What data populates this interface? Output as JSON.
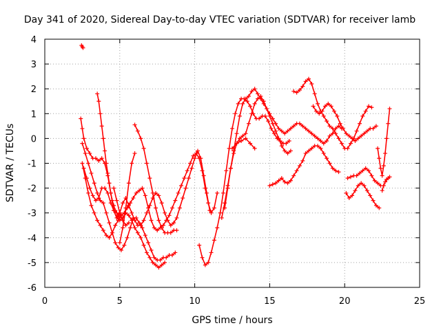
{
  "chart_data": {
    "type": "scatter",
    "title": "Day 341 of 2020, Sidereal Day-to-day VTEC variation (SDTVAR) for receiver lamb",
    "xlabel": "GPS time / hours",
    "ylabel": "SDTVAR / TECUs",
    "xlim": [
      0,
      25
    ],
    "ylim": [
      -6,
      4
    ],
    "xticks": [
      "0",
      "5",
      "10",
      "15",
      "20",
      "25"
    ],
    "yticks": [
      "-6",
      "-5",
      "-4",
      "-3",
      "-2",
      "-1",
      "0",
      "1",
      "2",
      "3",
      "4"
    ],
    "grid": true,
    "marker": "plus",
    "color": "#ff0000",
    "series": [
      {
        "x": [
          2.45,
          2.5,
          2.55
        ],
        "y": [
          3.75,
          3.7,
          3.65
        ]
      },
      {
        "x": [
          2.4,
          2.5,
          2.6,
          2.8,
          3.0,
          3.2,
          3.4,
          3.6,
          3.8,
          4.0,
          4.2,
          4.4,
          4.6,
          4.8,
          5.0,
          5.2,
          5.4,
          5.6,
          5.8,
          6.0,
          6.2,
          6.4,
          6.6,
          6.8,
          7.0,
          7.2,
          7.4,
          7.6,
          7.8,
          8.0
        ],
        "y": [
          0.8,
          0.4,
          0.0,
          -0.4,
          -0.6,
          -0.8,
          -0.8,
          -0.9,
          -0.8,
          -1.0,
          -1.5,
          -2.2,
          -2.9,
          -3.2,
          -3.3,
          -3.2,
          -3.0,
          -3.1,
          -3.3,
          -3.6,
          -3.8,
          -4.0,
          -4.3,
          -4.6,
          -4.8,
          -5.0,
          -5.1,
          -5.2,
          -5.1,
          -5.0
        ]
      },
      {
        "x": [
          2.5,
          2.7,
          2.9,
          3.1,
          3.3,
          3.5,
          3.7,
          3.9,
          4.1,
          4.3,
          4.5,
          4.7,
          4.9,
          5.1,
          5.3,
          5.5,
          5.7,
          5.9,
          6.1,
          6.3,
          6.5,
          6.7,
          6.9,
          7.1,
          7.3,
          7.5,
          7.7,
          7.9,
          8.1,
          8.3,
          8.5,
          8.7
        ],
        "y": [
          -0.2,
          -0.6,
          -1.0,
          -1.4,
          -1.8,
          -2.2,
          -2.5,
          -2.6,
          -3.0,
          -3.4,
          -3.8,
          -4.2,
          -4.4,
          -4.5,
          -4.3,
          -4.0,
          -3.6,
          -3.2,
          -3.2,
          -3.4,
          -3.6,
          -3.9,
          -4.2,
          -4.5,
          -4.8,
          -4.9,
          -4.9,
          -4.8,
          -4.8,
          -4.7,
          -4.7,
          -4.6
        ]
      },
      {
        "x": [
          2.6,
          2.8,
          3.0,
          3.2,
          3.4,
          3.6,
          3.8,
          4.0,
          4.2,
          4.4,
          4.6,
          4.8,
          5.0,
          5.2,
          5.4,
          5.6,
          5.8,
          6.0,
          6.2,
          6.4,
          6.6,
          6.8,
          7.0,
          7.2,
          7.4,
          7.6,
          7.8,
          8.0,
          8.2,
          8.4,
          8.6,
          8.8,
          9.0,
          9.2,
          9.4,
          9.6,
          9.8,
          10.0,
          10.2,
          10.4,
          10.6,
          10.8,
          11.0
        ],
        "y": [
          -1.2,
          -1.6,
          -2.0,
          -2.3,
          -2.5,
          -2.4,
          -2.0,
          -2.0,
          -2.2,
          -2.6,
          -2.9,
          -3.2,
          -3.0,
          -2.6,
          -2.4,
          -2.7,
          -3.0,
          -3.3,
          -3.5,
          -3.5,
          -3.3,
          -3.0,
          -2.7,
          -2.4,
          -2.2,
          -2.3,
          -2.6,
          -3.0,
          -3.3,
          -3.5,
          -3.4,
          -3.2,
          -2.8,
          -2.4,
          -2.0,
          -1.6,
          -1.2,
          -0.8,
          -0.5,
          -0.8,
          -1.5,
          -2.2,
          -2.9
        ]
      },
      {
        "x": [
          2.5,
          2.7,
          2.9,
          3.1,
          3.3,
          3.5,
          3.7,
          3.9,
          4.1,
          4.3,
          4.5,
          4.7,
          4.9,
          5.1,
          5.3,
          5.5,
          5.7,
          5.9,
          6.1,
          6.3,
          6.5,
          6.7,
          6.9,
          7.1,
          7.3,
          7.5,
          7.7,
          7.9,
          8.1,
          8.3,
          8.5,
          8.7,
          8.9,
          9.1,
          9.3,
          9.5,
          9.7,
          9.9,
          10.1,
          10.3,
          10.5,
          10.7,
          10.9,
          11.1,
          11.3,
          11.5
        ],
        "y": [
          -1.0,
          -1.6,
          -2.2,
          -2.7,
          -3.0,
          -3.3,
          -3.5,
          -3.7,
          -3.9,
          -4.0,
          -3.8,
          -3.5,
          -3.3,
          -3.1,
          -3.0,
          -2.8,
          -2.6,
          -2.4,
          -2.2,
          -2.1,
          -2.0,
          -2.3,
          -2.8,
          -3.3,
          -3.6,
          -3.7,
          -3.6,
          -3.5,
          -3.3,
          -3.1,
          -2.8,
          -2.5,
          -2.2,
          -1.9,
          -1.6,
          -1.3,
          -1.0,
          -0.7,
          -0.6,
          -0.8,
          -1.3,
          -2.0,
          -2.6,
          -3.0,
          -2.8,
          -2.2
        ]
      },
      {
        "x": [
          3.5,
          3.6,
          3.7,
          3.8,
          3.9,
          4.0,
          4.1,
          4.2,
          4.3,
          4.4,
          4.5,
          4.6,
          4.7,
          4.8,
          4.9,
          5.0
        ],
        "y": [
          1.8,
          1.5,
          1.0,
          0.5,
          0.0,
          -0.5,
          -1.0,
          -1.4,
          -1.8,
          -2.2,
          -2.5,
          -2.7,
          -2.9,
          -3.0,
          -3.1,
          -3.2
        ]
      },
      {
        "x": [
          4.6,
          4.8,
          5.0,
          5.2,
          5.4,
          5.6
        ],
        "y": [
          -2.0,
          -2.5,
          -3.0,
          -3.3,
          -3.5,
          -3.4
        ]
      },
      {
        "x": [
          5.0,
          5.2,
          5.4,
          5.6,
          5.8,
          6.0
        ],
        "y": [
          -4.2,
          -3.6,
          -2.8,
          -1.8,
          -1.0,
          -0.6
        ]
      },
      {
        "x": [
          6.0,
          6.2,
          6.4,
          6.6,
          6.8,
          7.0,
          7.2,
          7.4,
          7.6,
          7.8,
          8.0,
          8.2,
          8.4,
          8.6,
          8.8
        ],
        "y": [
          0.55,
          0.3,
          0.0,
          -0.4,
          -1.0,
          -1.6,
          -2.2,
          -2.8,
          -3.3,
          -3.6,
          -3.8,
          -3.8,
          -3.8,
          -3.7,
          -3.7
        ]
      },
      {
        "x": [
          10.3,
          10.5,
          10.7,
          10.9,
          11.1,
          11.3,
          11.5,
          11.7,
          11.9,
          12.1,
          12.3,
          12.5,
          12.7,
          12.9,
          13.1,
          13.3,
          13.5,
          13.7,
          13.9,
          14.1,
          14.3,
          14.5,
          14.7,
          14.9,
          15.1,
          15.3,
          15.5,
          15.7,
          15.9,
          16.1,
          16.3
        ],
        "y": [
          -4.3,
          -4.8,
          -5.1,
          -5.0,
          -4.6,
          -4.1,
          -3.6,
          -3.0,
          -2.2,
          -1.3,
          -0.4,
          0.4,
          1.0,
          1.4,
          1.6,
          1.6,
          1.5,
          1.3,
          1.0,
          0.8,
          0.8,
          0.9,
          0.9,
          0.7,
          0.4,
          0.2,
          0.0,
          -0.1,
          -0.2,
          -0.2,
          -0.1
        ]
      },
      {
        "x": [
          11.8,
          12.0,
          12.2,
          12.4,
          12.6,
          12.8,
          13.0,
          13.2,
          13.4,
          13.6,
          13.8,
          14.0,
          14.2,
          14.4,
          14.6,
          14.8,
          15.0,
          15.2,
          15.4,
          15.6,
          15.8,
          16.0,
          16.2,
          16.4,
          16.6,
          16.8,
          17.0,
          17.2,
          17.4,
          17.6,
          17.8,
          18.0,
          18.2,
          18.4,
          18.6,
          18.8,
          19.0,
          19.2,
          19.4,
          19.6,
          19.8
        ],
        "y": [
          -3.2,
          -2.6,
          -1.9,
          -1.2,
          -0.5,
          0.2,
          0.9,
          1.4,
          1.6,
          1.7,
          1.9,
          2.0,
          1.8,
          1.6,
          1.4,
          1.2,
          1.0,
          0.8,
          0.6,
          0.4,
          0.3,
          0.2,
          0.3,
          0.4,
          0.5,
          0.6,
          0.6,
          0.5,
          0.4,
          0.3,
          0.2,
          0.1,
          0.0,
          -0.1,
          -0.2,
          -0.1,
          0.1,
          0.2,
          0.4,
          0.5,
          0.4
        ]
      },
      {
        "x": [
          12.0,
          12.2,
          12.4,
          12.6,
          12.8,
          13.0,
          13.2,
          13.4,
          13.6,
          13.8,
          14.0,
          14.2,
          14.4,
          14.6,
          14.8,
          15.0,
          15.2,
          15.4,
          15.6,
          15.8,
          16.0,
          16.2,
          16.4
        ],
        "y": [
          -2.8,
          -2.0,
          -1.2,
          -0.6,
          -0.2,
          0.0,
          0.1,
          0.2,
          0.6,
          1.0,
          1.4,
          1.6,
          1.7,
          1.5,
          1.2,
          0.9,
          0.6,
          0.3,
          0.0,
          -0.3,
          -0.5,
          -0.6,
          -0.5
        ]
      },
      {
        "x": [
          12.5,
          12.8,
          13.1,
          13.4,
          13.7,
          14.0
        ],
        "y": [
          -0.4,
          -0.2,
          -0.1,
          0.0,
          -0.2,
          -0.4
        ]
      },
      {
        "x": [
          15.0,
          15.2,
          15.4,
          15.6,
          15.8,
          16.0,
          16.2,
          16.4,
          16.6,
          16.8,
          17.0,
          17.2,
          17.4,
          17.6,
          17.8,
          18.0,
          18.2,
          18.4,
          18.6,
          18.8,
          19.0,
          19.2,
          19.4,
          19.6
        ],
        "y": [
          -1.9,
          -1.85,
          -1.8,
          -1.7,
          -1.6,
          -1.75,
          -1.8,
          -1.7,
          -1.5,
          -1.3,
          -1.1,
          -0.9,
          -0.6,
          -0.5,
          -0.4,
          -0.3,
          -0.3,
          -0.4,
          -0.6,
          -0.8,
          -1.0,
          -1.2,
          -1.3,
          -1.35
        ]
      },
      {
        "x": [
          16.6,
          16.8,
          17.0,
          17.2,
          17.4,
          17.6,
          17.8,
          18.0,
          18.2,
          18.4,
          18.6,
          18.8,
          19.0,
          19.2,
          19.4,
          19.6,
          19.8,
          20.0,
          20.2,
          20.4,
          20.6,
          20.8,
          21.0,
          21.2,
          21.4,
          21.6,
          21.8
        ],
        "y": [
          1.9,
          1.85,
          1.95,
          2.1,
          2.3,
          2.4,
          2.2,
          1.8,
          1.4,
          1.1,
          0.9,
          0.7,
          0.5,
          0.4,
          0.2,
          0.0,
          -0.2,
          -0.4,
          -0.4,
          -0.2,
          0.0,
          0.3,
          0.6,
          0.9,
          1.1,
          1.3,
          1.25
        ]
      },
      {
        "x": [
          17.9,
          18.1,
          18.3,
          18.5,
          18.7,
          18.9,
          19.1,
          19.3,
          19.5,
          19.7,
          19.9,
          20.1,
          20.3,
          20.5,
          20.7,
          20.9,
          21.1,
          21.3,
          21.5,
          21.7,
          21.9,
          22.1
        ],
        "y": [
          1.3,
          1.1,
          1.0,
          1.1,
          1.3,
          1.4,
          1.3,
          1.1,
          0.9,
          0.6,
          0.4,
          0.2,
          0.1,
          0.0,
          -0.1,
          0.0,
          0.1,
          0.2,
          0.3,
          0.4,
          0.4,
          0.5
        ]
      },
      {
        "x": [
          20.1,
          20.3,
          20.5,
          20.7,
          20.9,
          21.1,
          21.3,
          21.5,
          21.7,
          21.9,
          22.1,
          22.3
        ],
        "y": [
          -2.2,
          -2.4,
          -2.3,
          -2.1,
          -1.9,
          -1.8,
          -1.9,
          -2.1,
          -2.3,
          -2.5,
          -2.7,
          -2.8
        ]
      },
      {
        "x": [
          20.2,
          20.4,
          20.6,
          20.8,
          21.0,
          21.2,
          21.4,
          21.6,
          21.8,
          22.0,
          22.2,
          22.4
        ],
        "y": [
          -1.6,
          -1.55,
          -1.5,
          -1.5,
          -1.4,
          -1.3,
          -1.2,
          -1.3,
          -1.5,
          -1.7,
          -1.8,
          -1.9
        ]
      },
      {
        "x": [
          22.2,
          22.3,
          22.4,
          22.5,
          22.6,
          22.7,
          22.8,
          22.9,
          23.0
        ],
        "y": [
          -0.4,
          -0.8,
          -1.2,
          -1.5,
          -1.1,
          -0.6,
          0.0,
          0.6,
          1.2
        ]
      },
      {
        "x": [
          22.5,
          22.6,
          22.7,
          22.8,
          22.9,
          23.0
        ],
        "y": [
          -2.1,
          -1.9,
          -1.75,
          -1.65,
          -1.6,
          -1.55
        ]
      }
    ]
  }
}
